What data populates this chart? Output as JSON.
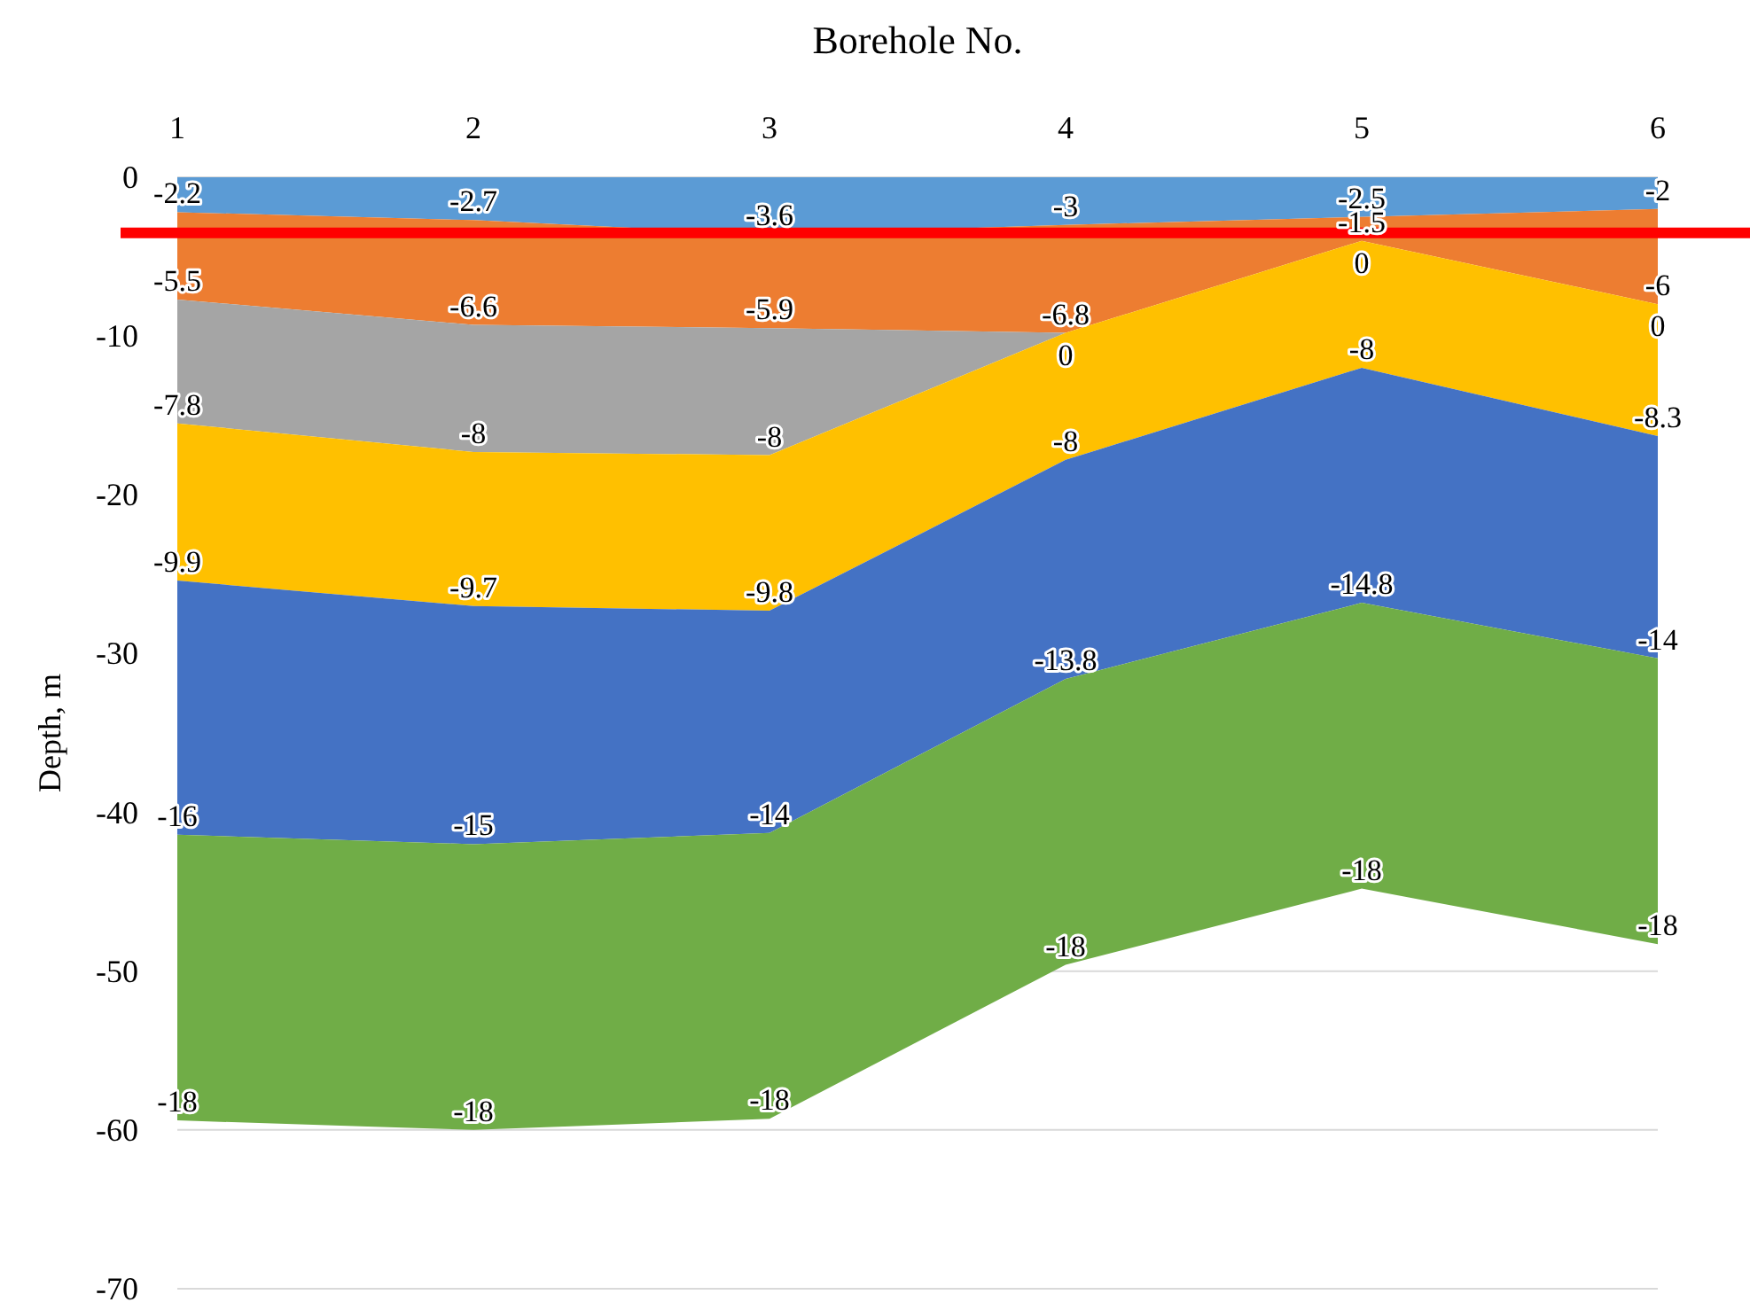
{
  "chart_data": {
    "type": "area",
    "stacked": true,
    "xlabel": "Borehole No.",
    "ylabel": "Depth, m",
    "categories": [
      "1",
      "2",
      "3",
      "4",
      "5",
      "6"
    ],
    "series": [
      {
        "color": "#5b9bd5",
        "values": [
          -2.2,
          -2.7,
          -3.6,
          -3,
          -2.5,
          -2
        ]
      },
      {
        "color": "#ed7d31",
        "values": [
          -5.5,
          -6.6,
          -5.9,
          -6.8,
          -1.5,
          -6
        ]
      },
      {
        "color": "#a5a5a5",
        "values": [
          -7.8,
          -8,
          -8,
          0,
          0,
          0
        ]
      },
      {
        "color": "#ffc000",
        "values": [
          -9.9,
          -9.7,
          -9.8,
          -8,
          -8,
          -8.3
        ]
      },
      {
        "color": "#4472c4",
        "values": [
          -16,
          -15,
          -14,
          -13.8,
          -14.8,
          -14
        ]
      },
      {
        "color": "#70ad47",
        "values": [
          -18,
          -18,
          -18,
          -18,
          -18,
          -18
        ]
      }
    ],
    "ylim": [
      -70,
      0
    ],
    "yticks": [
      0,
      -10,
      -20,
      -30,
      -40,
      -50,
      -60,
      -70
    ],
    "grid": "y",
    "data_labels": true,
    "ref_lines": [
      {
        "axis": "y",
        "value": -3.5,
        "color": "#ff0000"
      }
    ]
  }
}
